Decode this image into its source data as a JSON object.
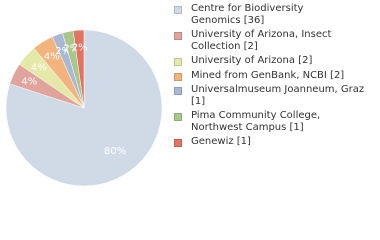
{
  "chart_data": {
    "type": "pie",
    "categories": [
      "Centre for Biodiversity\nGenomics [36]",
      "University of Arizona, Insect\nCollection [2]",
      "University of Arizona [2]",
      "Mined from GenBank, NCBI [2]",
      "Universalmuseum Joanneum, Graz [1]",
      "Pima Community College,\nNorthwest Campus [1]",
      "Genewiz [1]"
    ],
    "values": [
      80,
      4.44,
      4.44,
      4.44,
      2.22,
      2.22,
      2.22
    ],
    "value_labels": [
      "80%",
      "4%",
      "4%",
      "4%",
      "2%",
      "2%",
      "2%"
    ],
    "colors": [
      "#cfdae6",
      "#e0a49c",
      "#e4e8a8",
      "#f2b47c",
      "#aab8d8",
      "#a8c88a",
      "#e07462"
    ]
  }
}
